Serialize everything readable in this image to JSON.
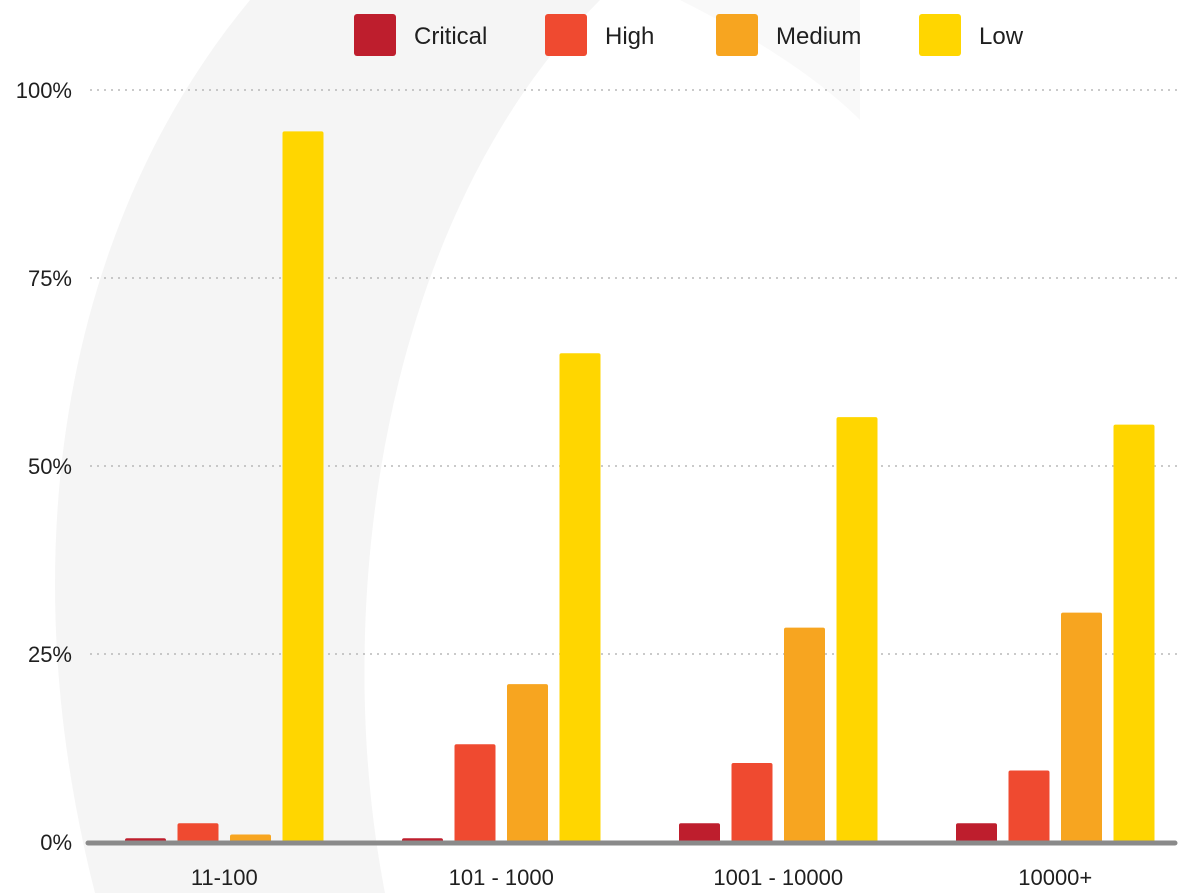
{
  "chart_data": {
    "type": "bar",
    "categories": [
      "11-100",
      "101 - 1000",
      "1001 - 10000",
      "10000+"
    ],
    "series": [
      {
        "name": "Critical",
        "color": "#BE1E2D",
        "values": [
          0.5,
          0.5,
          2.5,
          2.5
        ]
      },
      {
        "name": "High",
        "color": "#EF4A30",
        "values": [
          2.5,
          13,
          10.5,
          9.5
        ]
      },
      {
        "name": "Medium",
        "color": "#F7A520",
        "values": [
          1,
          21,
          28.5,
          30.5
        ]
      },
      {
        "name": "Low",
        "color": "#FFD600",
        "values": [
          94.5,
          65,
          56.5,
          55.5
        ]
      }
    ],
    "yticks": [
      {
        "value": 0,
        "label": "0%"
      },
      {
        "value": 25,
        "label": "25%"
      },
      {
        "value": 50,
        "label": "50%"
      },
      {
        "value": 75,
        "label": "75%"
      },
      {
        "value": 100,
        "label": "100%"
      }
    ],
    "ylim": [
      0,
      100
    ],
    "grid": true,
    "legend_position": "top-center",
    "title": "",
    "xlabel": "",
    "ylabel": ""
  }
}
